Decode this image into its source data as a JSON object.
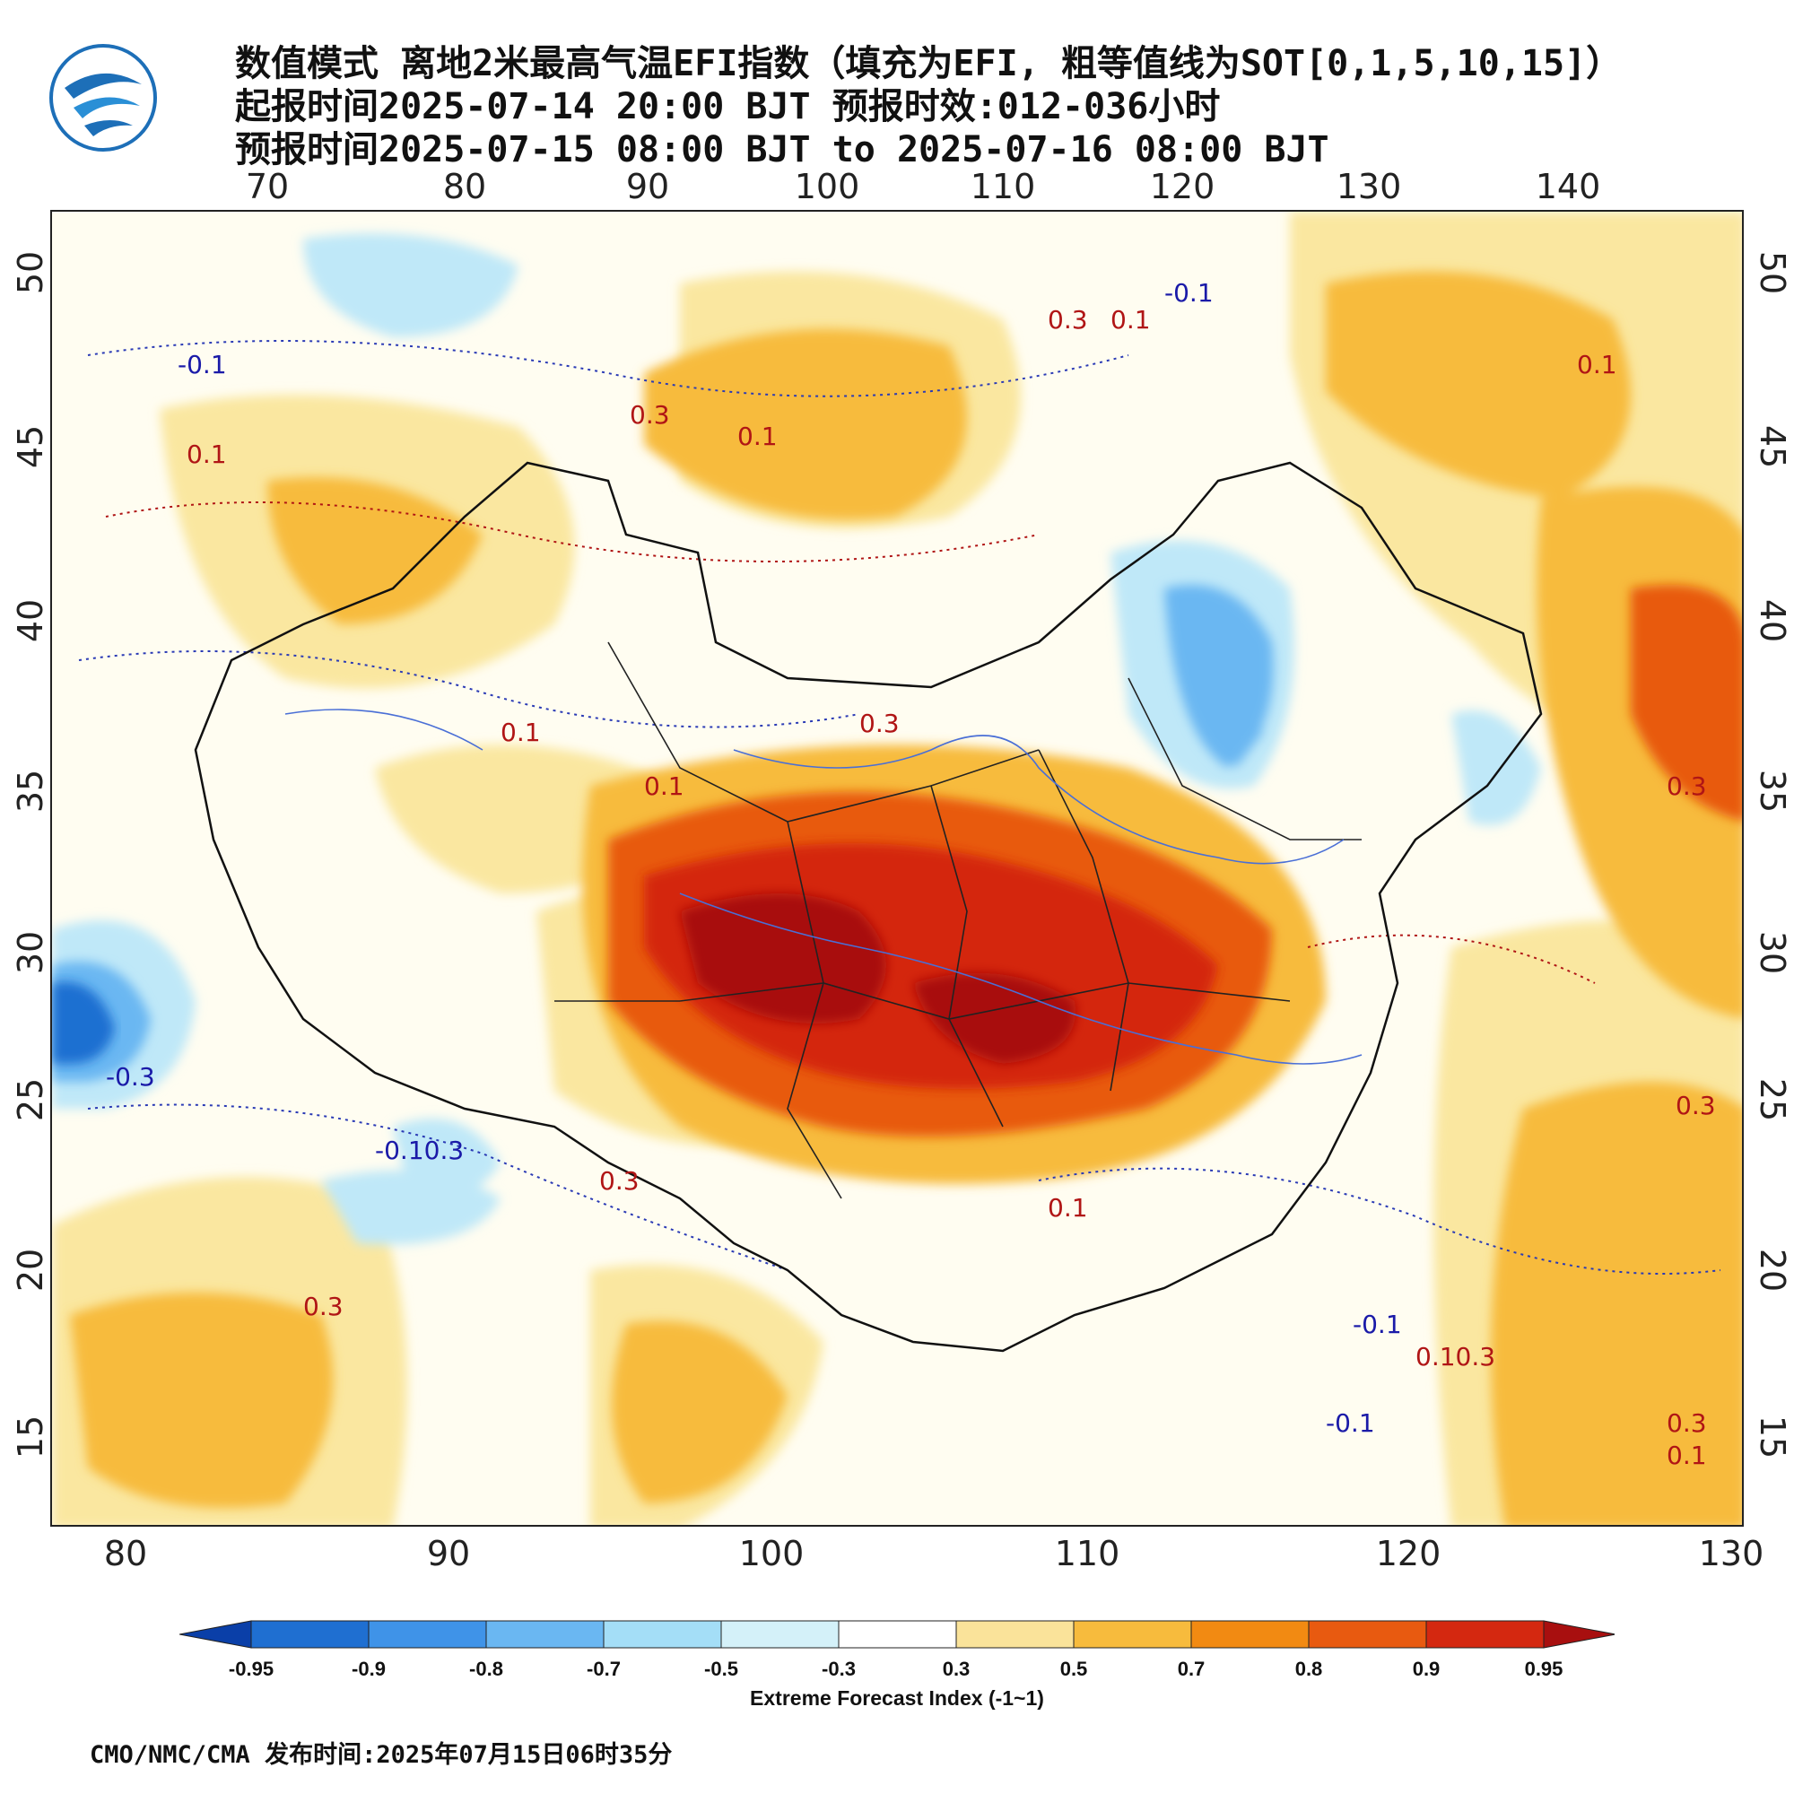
{
  "title": {
    "line1": "数值模式 离地2米最高气温EFI指数（填充为EFI, 粗等值线为SOT[0,1,5,10,15]）",
    "line2": "起报时间2025-07-14 20:00 BJT 预报时效:012-036小时",
    "line3": "预报时间2025-07-15 08:00 BJT to 2025-07-16 08:00 BJT"
  },
  "logo": {
    "icon": "cma-logo-icon"
  },
  "axes": {
    "top_ticks": [
      "70",
      "80",
      "90",
      "100",
      "110",
      "120",
      "130",
      "140"
    ],
    "bottom_ticks": [
      "80",
      "90",
      "100",
      "110",
      "120",
      "130"
    ],
    "left_ticks": [
      "50",
      "45",
      "40",
      "35",
      "30",
      "25",
      "20",
      "15"
    ],
    "right_ticks": [
      "50",
      "45",
      "40",
      "35",
      "30",
      "25",
      "20",
      "15"
    ]
  },
  "contour_labels": [
    {
      "text": "-0.1",
      "color": "#1a1aa8"
    },
    {
      "text": "0.1",
      "color": "#b01515"
    },
    {
      "text": "0.3",
      "color": "#b01515"
    },
    {
      "text": "0.1",
      "color": "#b01515"
    },
    {
      "text": "0.3",
      "color": "#b01515"
    },
    {
      "text": "0.1",
      "color": "#b01515"
    },
    {
      "text": "-0.1",
      "color": "#1a1aa8"
    },
    {
      "text": "0.3",
      "color": "#b01515"
    },
    {
      "text": "0.1",
      "color": "#b01515"
    },
    {
      "text": "-0.3",
      "color": "#1a1aa8"
    },
    {
      "text": "-0.10.3",
      "color": "#1a1aa8"
    },
    {
      "text": "0.3",
      "color": "#b01515"
    },
    {
      "text": "0.1",
      "color": "#b01515"
    },
    {
      "text": "-0.1",
      "color": "#1a1aa8"
    },
    {
      "text": "0.10.3",
      "color": "#b01515"
    },
    {
      "text": "-0.1",
      "color": "#1a1aa8"
    },
    {
      "text": "0.3",
      "color": "#b01515"
    },
    {
      "text": "0.1",
      "color": "#b01515"
    },
    {
      "text": "0.3",
      "color": "#b01515"
    },
    {
      "text": "0.3",
      "color": "#b01515"
    },
    {
      "text": "0.1",
      "color": "#b01515"
    },
    {
      "text": "0.3",
      "color": "#b01515"
    },
    {
      "text": "0.1",
      "color": "#b01515"
    }
  ],
  "colorbar": {
    "colors": [
      "#0a3fa8",
      "#1f6fd1",
      "#3f93e8",
      "#6ab7f2",
      "#a4def7",
      "#d4f1f9",
      "#ffffff",
      "#fae39a",
      "#f7bb3d",
      "#f28a12",
      "#e85a10",
      "#d42810",
      "#a80f0f"
    ],
    "labels": [
      "-0.95",
      "-0.9",
      "-0.8",
      "-0.7",
      "-0.5",
      "-0.3",
      "0.3",
      "0.5",
      "0.7",
      "0.8",
      "0.9",
      "0.95"
    ],
    "title": "Extreme Forecast Index (-1~1)"
  },
  "footer": "CMO/NMC/CMA 发布时间:2025年07月15日06时35分"
}
